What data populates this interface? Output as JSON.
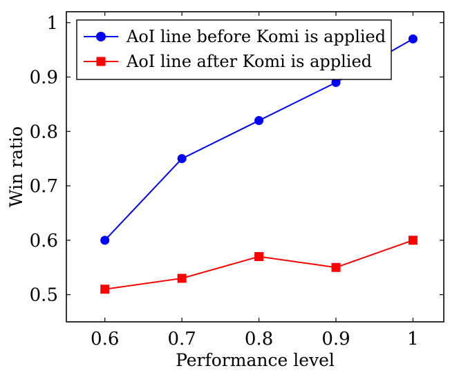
{
  "chart_data": {
    "type": "line",
    "title": "",
    "xlabel": "Performance level",
    "ylabel": "Win ratio",
    "x": [
      0.6,
      0.7,
      0.8,
      0.9,
      1
    ],
    "xlim": [
      0.55,
      1.04
    ],
    "ylim": [
      0.45,
      1.02
    ],
    "xticks": [
      "0.6",
      "0.7",
      "0.8",
      "0.9",
      "1"
    ],
    "yticks": [
      "0.5",
      "0.6",
      "0.7",
      "0.8",
      "0.9",
      "1"
    ],
    "ytick_values": [
      0.5,
      0.6,
      0.7,
      0.8,
      0.9,
      1.0
    ],
    "grid": false,
    "legend_position": "top-left",
    "series": [
      {
        "name": "AoI line before Komi is applied",
        "color": "#0000ff",
        "marker": "circle",
        "values": [
          0.6,
          0.75,
          0.82,
          0.89,
          0.97
        ]
      },
      {
        "name": "AoI line after Komi is applied",
        "color": "#ff0000",
        "marker": "square",
        "values": [
          0.51,
          0.53,
          0.57,
          0.55,
          0.6
        ]
      }
    ]
  }
}
